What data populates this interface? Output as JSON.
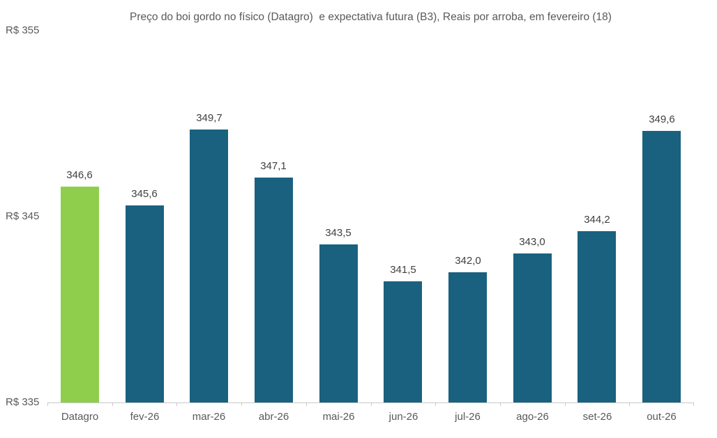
{
  "title": "Preço do boi gordo no físico (Datagro)  e expectativa futura (B3), Reais por arroba, em fevereiro (18)",
  "colors": {
    "bar_default": "#19617F",
    "bar_highlight": "#8FCE4D",
    "axis_line": "#c9c9c9",
    "title_text": "#595959",
    "axis_text": "#595959",
    "value_text": "#404040"
  },
  "y_axis": {
    "ticks": [
      {
        "label": "R$ 355",
        "value": 355
      },
      {
        "label": "R$ 345",
        "value": 345
      },
      {
        "label": "R$ 335",
        "value": 335
      }
    ]
  },
  "chart_data": {
    "type": "bar",
    "title": "Preço do boi gordo no físico (Datagro)  e expectativa futura (B3), Reais por arroba, em fevereiro (18)",
    "categories": [
      "Datagro",
      "fev-26",
      "mar-26",
      "abr-26",
      "mai-26",
      "jun-26",
      "jul-26",
      "ago-26",
      "set-26",
      "out-26"
    ],
    "values": [
      346.6,
      345.6,
      349.7,
      347.1,
      343.5,
      341.5,
      342.0,
      343.0,
      344.2,
      349.6
    ],
    "value_labels": [
      "346,6",
      "345,6",
      "349,7",
      "347,1",
      "343,5",
      "341,5",
      "342,0",
      "343,0",
      "344,2",
      "349,6"
    ],
    "xlabel": "",
    "ylabel": "",
    "ylim": [
      335,
      355
    ],
    "grid": false,
    "legend": false,
    "highlight_index": 0,
    "bar_color_default": "#19617F",
    "bar_color_highlight": "#8FCE4D"
  }
}
